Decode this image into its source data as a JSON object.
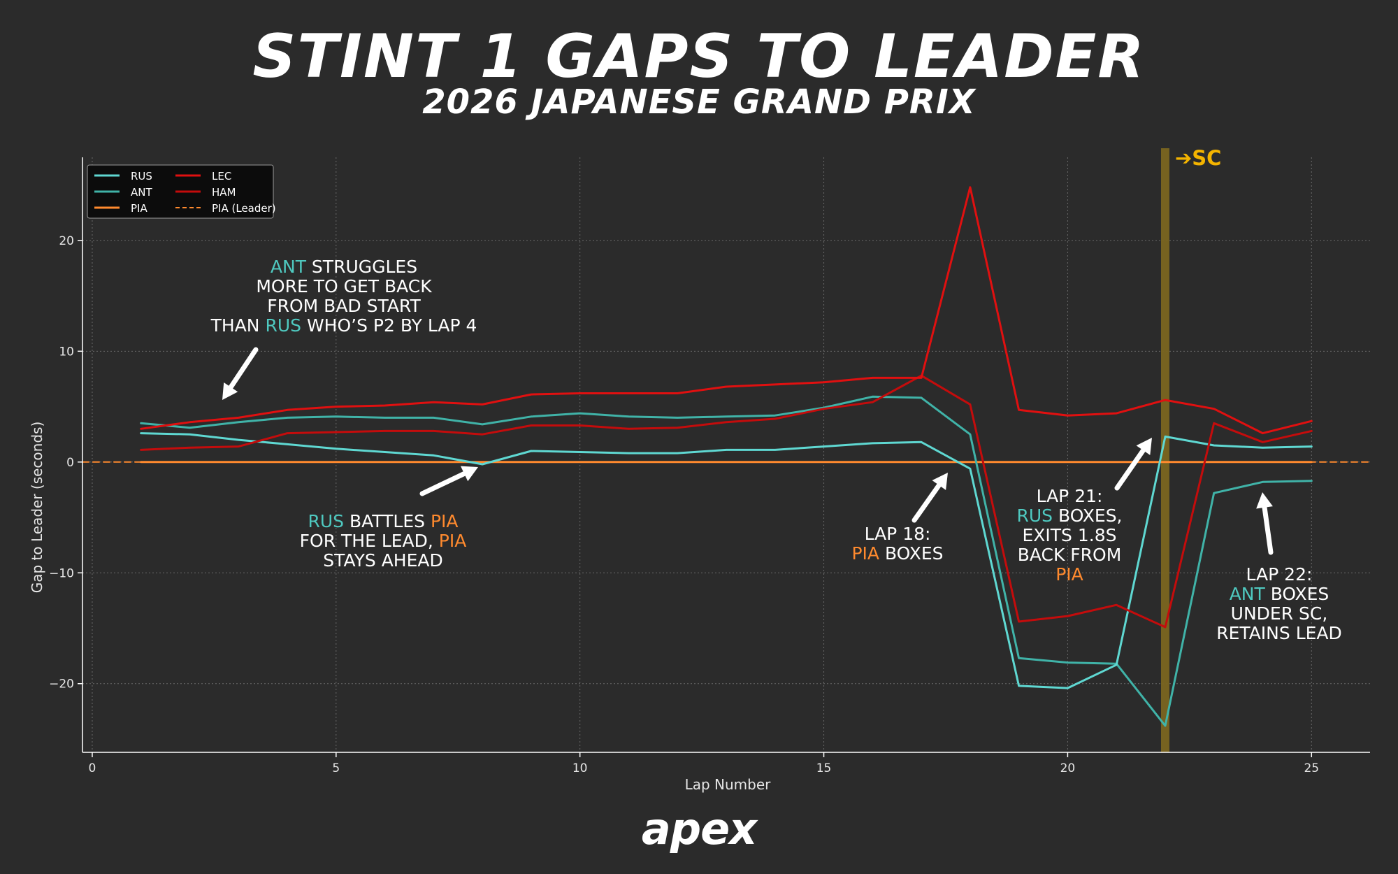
{
  "title": "STINT 1 GAPS TO LEADER",
  "subtitle": "2026 JAPANESE GRAND PRIX",
  "brand": "apex",
  "sc_label": "➔SC",
  "colors": {
    "background": "#2b2b2b",
    "rus": "#5fd8d2",
    "ant": "#40b3a8",
    "pia": "#ff8a2e",
    "lec": "#e01010",
    "ham": "#c40c0c",
    "sc_band": "#7a6520",
    "sc_text": "#f4b400",
    "grid": "#6a6a6a"
  },
  "chart_data": {
    "type": "line",
    "xlabel": "Lap Number",
    "ylabel": "Gap to Leader (seconds)",
    "xlim": [
      -0.2,
      26.2
    ],
    "ylim": [
      -26.2,
      27.5
    ],
    "xticks": [
      0,
      5,
      10,
      15,
      20,
      25
    ],
    "yticks": [
      -20,
      -10,
      0,
      10,
      20
    ],
    "grid": true,
    "legend_position": "top-left",
    "safety_car_lap": 22,
    "series": [
      {
        "name": "RUS",
        "color_key": "rus",
        "x": [
          1,
          2,
          3,
          4,
          5,
          6,
          7,
          8,
          9,
          10,
          11,
          12,
          13,
          14,
          15,
          16,
          17,
          18,
          19,
          20,
          21,
          22,
          23,
          24,
          25
        ],
        "y": [
          2.6,
          2.5,
          2.0,
          1.6,
          1.2,
          0.9,
          0.6,
          -0.2,
          1.0,
          0.9,
          0.8,
          0.8,
          1.1,
          1.1,
          1.4,
          1.7,
          1.8,
          -0.6,
          -20.2,
          -20.4,
          -18.3,
          2.3,
          1.5,
          1.3,
          1.4
        ]
      },
      {
        "name": "ANT",
        "color_key": "ant",
        "x": [
          1,
          2,
          3,
          4,
          5,
          6,
          7,
          8,
          9,
          10,
          11,
          12,
          13,
          14,
          15,
          16,
          17,
          18,
          19,
          20,
          21,
          22,
          23,
          24,
          25
        ],
        "y": [
          3.5,
          3.1,
          3.6,
          4.0,
          4.1,
          4.0,
          4.0,
          3.4,
          4.1,
          4.4,
          4.1,
          4.0,
          4.1,
          4.2,
          4.9,
          5.9,
          5.8,
          2.5,
          -17.7,
          -18.1,
          -18.2,
          -23.8,
          -2.8,
          -1.8,
          -1.7
        ]
      },
      {
        "name": "PIA",
        "color_key": "pia",
        "style": "solid",
        "x": [
          1,
          25
        ],
        "y": [
          0,
          0
        ]
      },
      {
        "name": "LEC",
        "color_key": "lec",
        "x": [
          1,
          2,
          3,
          4,
          5,
          6,
          7,
          8,
          9,
          10,
          11,
          12,
          13,
          14,
          15,
          16,
          17,
          18,
          19,
          20,
          21,
          22,
          23,
          24,
          25
        ],
        "y": [
          3.0,
          3.6,
          4.0,
          4.7,
          5.0,
          5.1,
          5.4,
          5.2,
          6.1,
          6.2,
          6.2,
          6.2,
          6.8,
          7.0,
          7.2,
          7.6,
          7.6,
          24.8,
          4.7,
          4.2,
          4.4,
          5.6,
          4.8,
          2.6,
          3.7
        ]
      },
      {
        "name": "HAM",
        "color_key": "ham",
        "x": [
          1,
          2,
          3,
          4,
          5,
          6,
          7,
          8,
          9,
          10,
          11,
          12,
          13,
          14,
          15,
          16,
          17,
          18,
          19,
          20,
          21,
          22,
          23,
          24,
          25
        ],
        "y": [
          1.1,
          1.3,
          1.4,
          2.6,
          2.7,
          2.8,
          2.8,
          2.5,
          3.3,
          3.3,
          3.0,
          3.1,
          3.6,
          3.9,
          4.8,
          5.4,
          7.8,
          5.2,
          -14.4,
          -13.9,
          -12.9,
          -14.9,
          3.5,
          1.8,
          2.8
        ]
      },
      {
        "name": "PIA (Leader)",
        "color_key": "pia",
        "style": "dashed",
        "x": [
          -0.2,
          26.2
        ],
        "y": [
          0,
          0
        ]
      }
    ]
  },
  "annotations": [
    {
      "id": "ant-struggles",
      "lines": [
        [
          {
            "t": "ANT",
            "c": "ant"
          },
          {
            "t": " STRUGGLES"
          }
        ],
        [
          {
            "t": "MORE TO GET BACK"
          }
        ],
        [
          {
            "t": "FROM BAD START"
          }
        ],
        [
          {
            "t": "THAN "
          },
          {
            "t": "RUS",
            "c": "rus"
          },
          {
            "t": " WHO’S P2 BY LAP 4"
          }
        ]
      ]
    },
    {
      "id": "rus-battles",
      "lines": [
        [
          {
            "t": "RUS",
            "c": "rus"
          },
          {
            "t": " BATTLES "
          },
          {
            "t": "PIA",
            "c": "pia"
          }
        ],
        [
          {
            "t": "FOR THE LEAD, "
          },
          {
            "t": "PIA",
            "c": "pia"
          }
        ],
        [
          {
            "t": "STAYS AHEAD"
          }
        ]
      ]
    },
    {
      "id": "lap18",
      "lines": [
        [
          {
            "t": "LAP 18:"
          }
        ],
        [
          {
            "t": "PIA",
            "c": "pia"
          },
          {
            "t": " BOXES"
          }
        ]
      ]
    },
    {
      "id": "lap21",
      "lines": [
        [
          {
            "t": "LAP 21:"
          }
        ],
        [
          {
            "t": "RUS",
            "c": "rus"
          },
          {
            "t": " BOXES,"
          }
        ],
        [
          {
            "t": "EXITS 1.8S"
          }
        ],
        [
          {
            "t": "BACK FROM"
          }
        ],
        [
          {
            "t": "PIA",
            "c": "pia"
          }
        ]
      ]
    },
    {
      "id": "lap22",
      "lines": [
        [
          {
            "t": "LAP 22:"
          }
        ],
        [
          {
            "t": "ANT",
            "c": "ant"
          },
          {
            "t": " BOXES"
          }
        ],
        [
          {
            "t": "UNDER SC,"
          }
        ],
        [
          {
            "t": "RETAINS LEAD"
          }
        ]
      ]
    }
  ]
}
